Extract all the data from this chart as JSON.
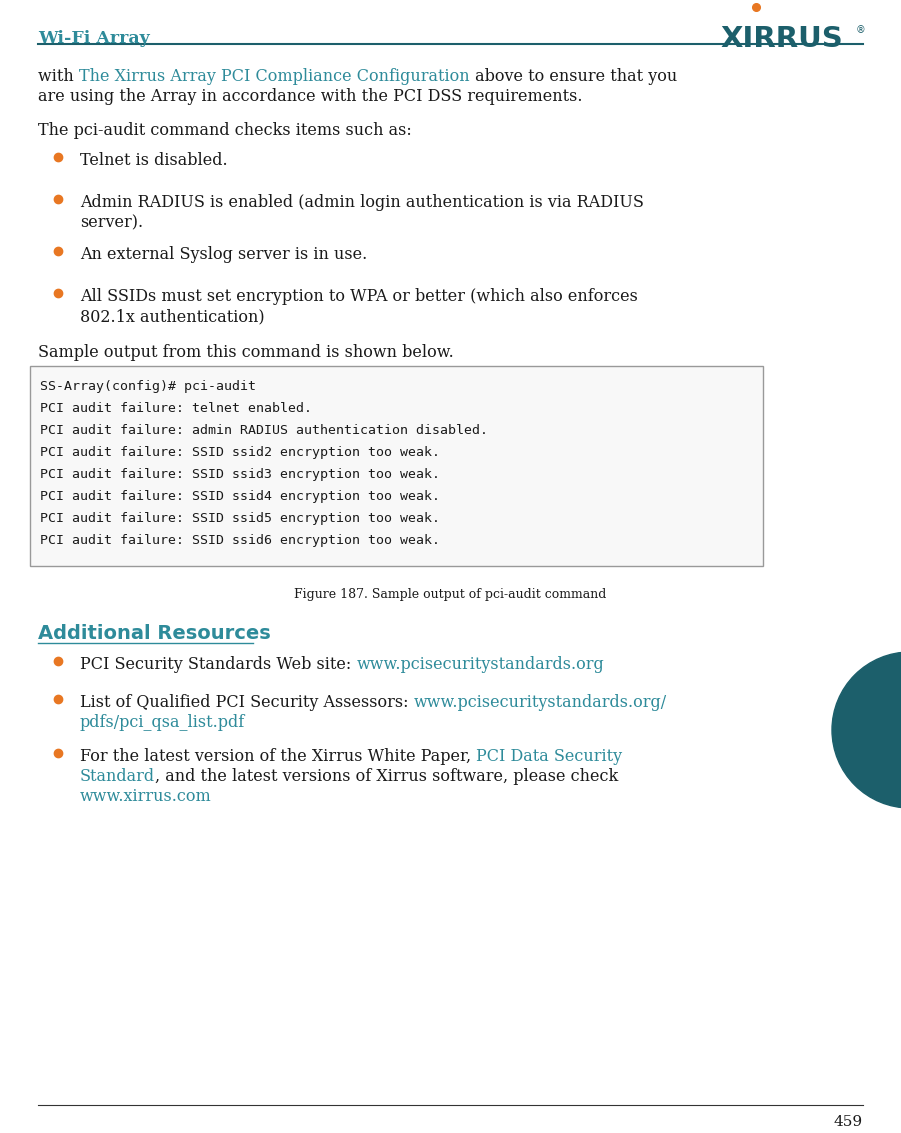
{
  "bg_color": "#ffffff",
  "header_text": "Wi-Fi Array",
  "teal_color": "#2E8B9A",
  "dark_teal": "#1C5F6B",
  "orange_color": "#E87722",
  "bullet_color": "#E87722",
  "body_color": "#1a1a1a",
  "link_color": "#2E8B9A",
  "mono_bg": "#f8f8f8",
  "mono_border": "#999999",
  "page_number": "459",
  "header_line_color": "#1C5F6B",
  "circle_color": "#1C5F6B",
  "footer_line_color": "#333333",
  "code_lines": [
    "SS-Array(config)# pci-audit",
    "PCI audit failure: telnet enabled.",
    "PCI audit failure: admin RADIUS authentication disabled.",
    "PCI audit failure: SSID ssid2 encryption too weak.",
    "PCI audit failure: SSID ssid3 encryption too weak.",
    "PCI audit failure: SSID ssid4 encryption too weak.",
    "PCI audit failure: SSID ssid5 encryption too weak.",
    "PCI audit failure: SSID ssid6 encryption too weak."
  ],
  "figure_caption": "Figure 187. Sample output of pci-audit command",
  "additional_title": "Additional Resources"
}
